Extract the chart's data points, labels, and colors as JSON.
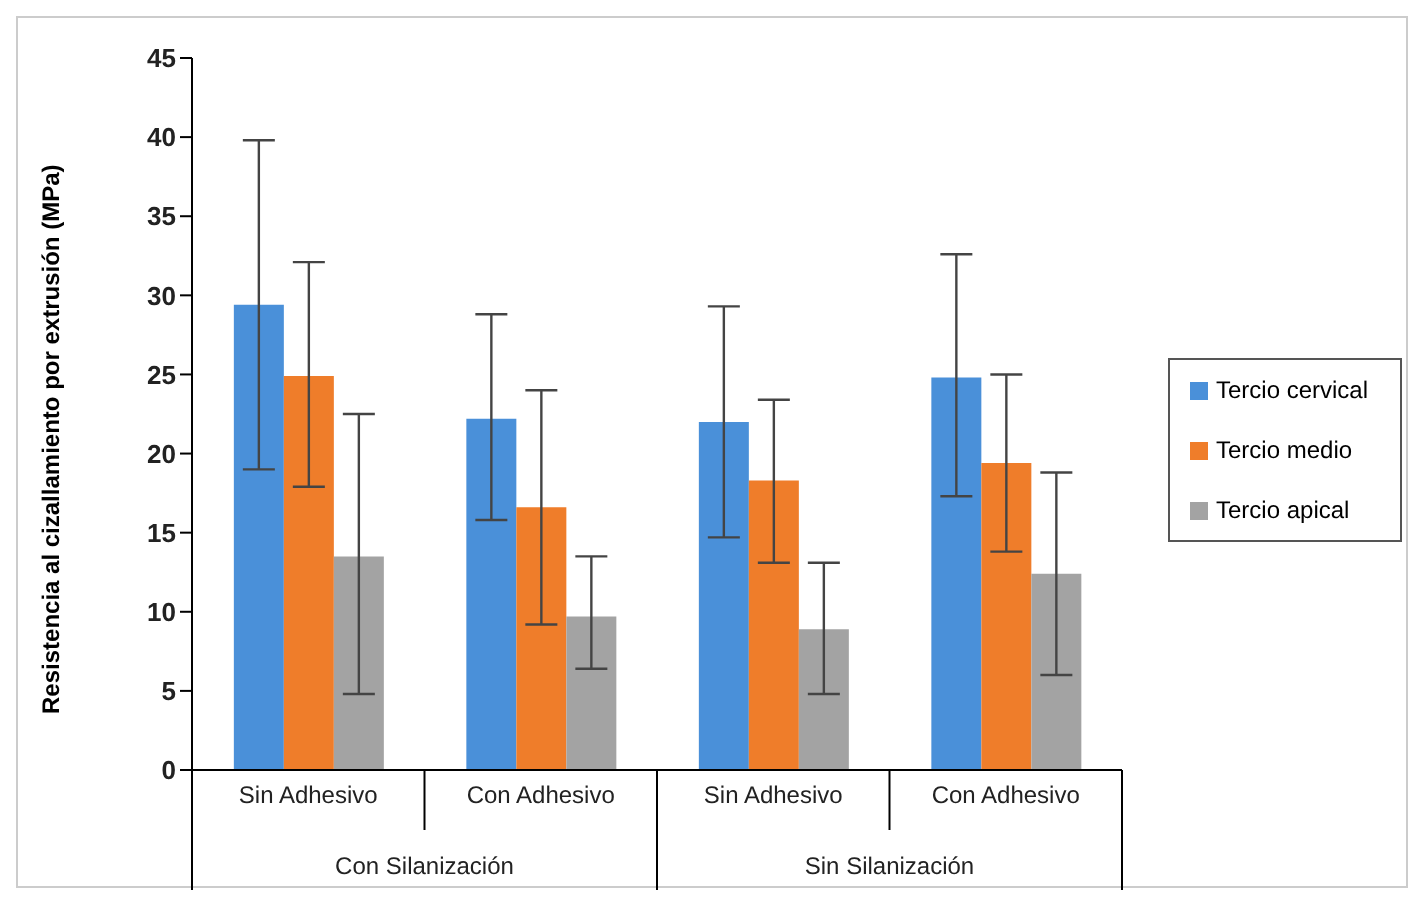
{
  "chart_data": {
    "type": "bar",
    "ylabel": "Resistencia al cizallamiento por extrusión (MPa)",
    "categories": [
      "Sin Adhesivo",
      "Con Adhesivo",
      "Sin Adhesivo",
      "Con Adhesivo"
    ],
    "annotations": [
      "Con Silanización",
      "Sin Silanización"
    ],
    "series": [
      {
        "name": "Tercio cervical",
        "color": "#4a90d9",
        "values": [
          29.4,
          22.2,
          22.0,
          24.8
        ],
        "errors": [
          [
            19.0,
            39.8
          ],
          [
            15.8,
            28.8
          ],
          [
            14.7,
            29.3
          ],
          [
            17.3,
            32.6
          ]
        ]
      },
      {
        "name": "Tercio medio",
        "color": "#ef7d2a",
        "values": [
          24.9,
          16.6,
          18.3,
          19.4
        ],
        "errors": [
          [
            17.9,
            32.1
          ],
          [
            9.2,
            24.0
          ],
          [
            13.1,
            23.4
          ],
          [
            13.8,
            25.0
          ]
        ]
      },
      {
        "name": "Tercio apical",
        "color": "#a3a3a3",
        "values": [
          13.5,
          9.7,
          8.9,
          12.4
        ],
        "errors": [
          [
            4.8,
            22.5
          ],
          [
            6.4,
            13.5
          ],
          [
            4.8,
            13.1
          ],
          [
            6.0,
            18.8
          ]
        ]
      }
    ],
    "ylim": [
      0,
      45
    ],
    "yticks": [
      0,
      5,
      10,
      15,
      20,
      25,
      30,
      35,
      40,
      45
    ],
    "legend": "right"
  }
}
